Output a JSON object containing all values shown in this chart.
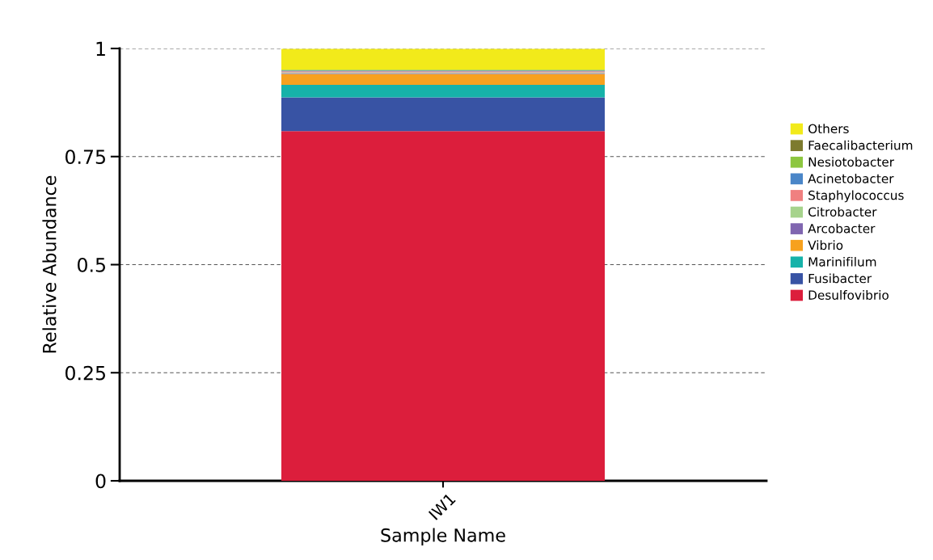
{
  "chart_data": {
    "type": "bar",
    "stacked": true,
    "xlabel": "Sample Name",
    "ylabel": "Relative Abundance",
    "categories": [
      "IW1"
    ],
    "series": [
      {
        "name": "Desulfovibrio",
        "color": "#dc1e3c",
        "values": [
          0.809
        ]
      },
      {
        "name": "Fusibacter",
        "color": "#3853a4",
        "values": [
          0.078
        ]
      },
      {
        "name": "Marinifilum",
        "color": "#16b2a9",
        "values": [
          0.029
        ]
      },
      {
        "name": "Vibrio",
        "color": "#f7a11e",
        "values": [
          0.025
        ]
      },
      {
        "name": "Arcobacter",
        "color": "#8066b0",
        "values": [
          0.002
        ]
      },
      {
        "name": "Citrobacter",
        "color": "#a6d38c",
        "values": [
          0.002
        ]
      },
      {
        "name": "Staphylococcus",
        "color": "#f08080",
        "values": [
          0.002
        ]
      },
      {
        "name": "Acinetobacter",
        "color": "#4a86c8",
        "values": [
          0.002
        ]
      },
      {
        "name": "Nesiotobacter",
        "color": "#8cc63f",
        "values": [
          0.002
        ]
      },
      {
        "name": "Faecalibacterium",
        "color": "#7d7b2e",
        "values": [
          null
        ]
      },
      {
        "name": "Others",
        "color": "#f2ea1a",
        "values": [
          0.048
        ]
      }
    ],
    "ylim": [
      0,
      1
    ],
    "yticks": [
      0,
      {
        "value": 0.25,
        "label": "0.25"
      },
      {
        "value": 0.5,
        "label": "0.5"
      },
      {
        "value": 0.75,
        "label": "0.75"
      },
      1
    ],
    "grid": "y",
    "legend": "right"
  }
}
